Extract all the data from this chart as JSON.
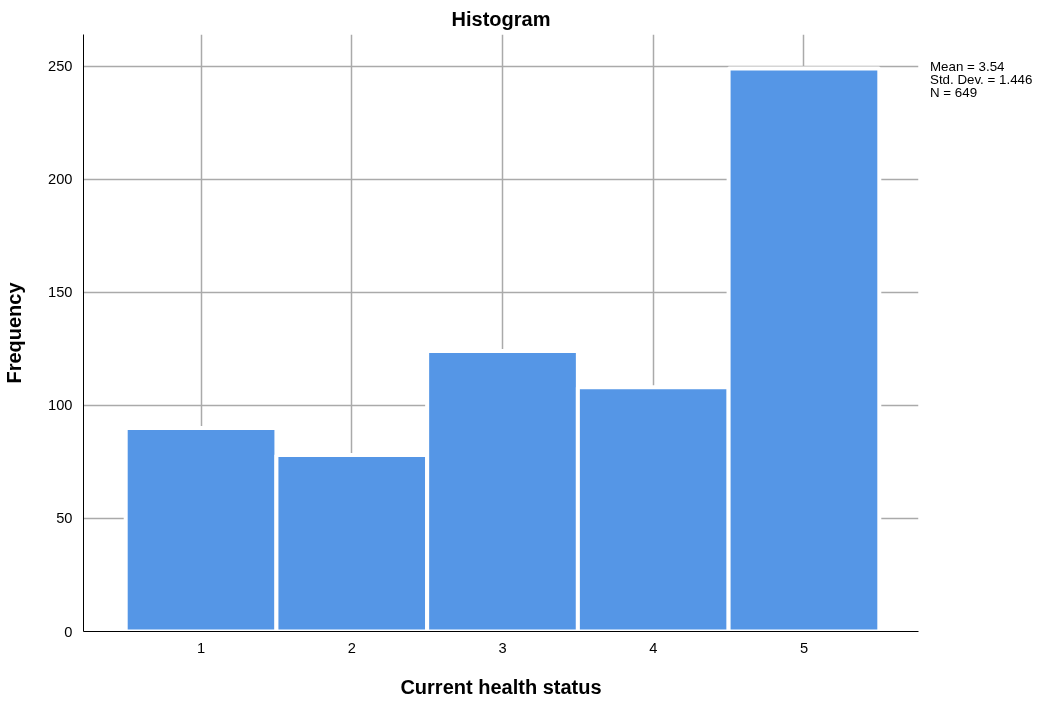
{
  "chart_data": {
    "type": "histogram",
    "title": "Histogram",
    "xlabel": "Current health status",
    "ylabel": "Frequency",
    "bins": [
      0.5,
      1.5,
      2.5,
      3.5,
      4.5,
      5.5
    ],
    "values": [
      90,
      78,
      124,
      108,
      249
    ],
    "color": "#5596e6",
    "xlim": [
      0.22,
      5.76
    ],
    "ylim": [
      0,
      264
    ],
    "xticks": [
      1,
      2,
      3,
      4,
      5
    ],
    "yticks": [
      0,
      50,
      100,
      150,
      200,
      250
    ],
    "grid": true,
    "annotations": [
      "Mean = 3.54",
      "Std. Dev. = 1.446",
      "N = 649"
    ]
  }
}
